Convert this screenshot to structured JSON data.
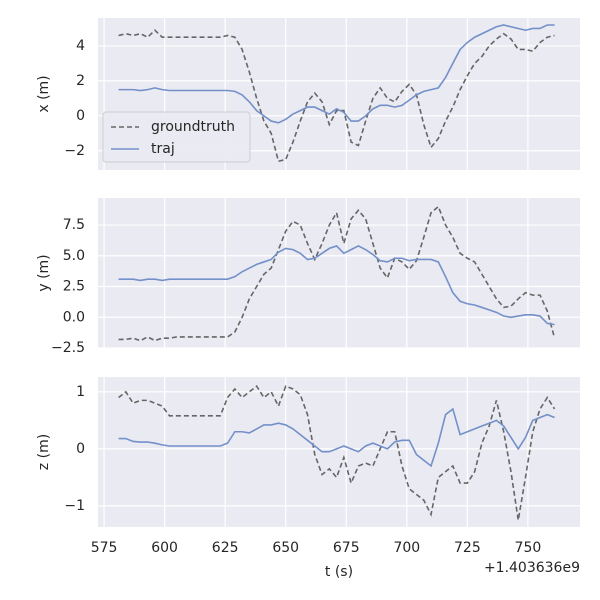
{
  "chart_data": [
    {
      "type": "line",
      "ylabel": "x (m)",
      "legend": "center left",
      "x": [
        581,
        584,
        587,
        590,
        593,
        596,
        599,
        602,
        605,
        608,
        611,
        614,
        617,
        620,
        623,
        626,
        629,
        632,
        635,
        638,
        641,
        644,
        647,
        650,
        653,
        656,
        659,
        662,
        665,
        668,
        671,
        674,
        677,
        680,
        683,
        686,
        689,
        692,
        695,
        698,
        701,
        704,
        707,
        710,
        713,
        716,
        719,
        722,
        725,
        728,
        731,
        734,
        737,
        740,
        743,
        746,
        749,
        752,
        755,
        758,
        761
      ],
      "xlim": [
        572.5,
        771.5
      ],
      "ylim": [
        -3.1,
        5.6
      ],
      "yticks": [
        {
          "value": -2,
          "label": "−2"
        },
        0,
        2,
        4
      ],
      "series": [
        {
          "name": "groundtruth",
          "color": "#666666",
          "dash": true,
          "values": [
            4.6,
            4.7,
            4.6,
            4.7,
            4.5,
            4.9,
            4.5,
            4.5,
            4.5,
            4.5,
            4.5,
            4.5,
            4.5,
            4.5,
            4.5,
            4.6,
            4.5,
            3.8,
            2.5,
            1.0,
            -0.3,
            -1.0,
            -2.6,
            -2.5,
            -1.5,
            -0.3,
            0.8,
            1.3,
            0.8,
            -0.5,
            0.3,
            0.3,
            -1.5,
            -1.7,
            -0.3,
            1.0,
            1.6,
            1.0,
            0.8,
            1.4,
            1.8,
            1.2,
            -0.5,
            -1.8,
            -1.3,
            -0.3,
            0.5,
            1.5,
            2.3,
            3.0,
            3.4,
            4.0,
            4.4,
            4.7,
            4.4,
            3.8,
            3.8,
            3.7,
            4.2,
            4.5,
            4.6
          ]
        },
        {
          "name": "traj",
          "color": "#7390c9",
          "dash": false,
          "values": [
            1.5,
            1.5,
            1.5,
            1.45,
            1.5,
            1.6,
            1.5,
            1.45,
            1.45,
            1.45,
            1.45,
            1.45,
            1.45,
            1.45,
            1.45,
            1.45,
            1.4,
            1.2,
            0.8,
            0.3,
            0.0,
            -0.3,
            -0.4,
            -0.2,
            0.1,
            0.3,
            0.5,
            0.5,
            0.3,
            0.1,
            0.4,
            0.2,
            -0.3,
            -0.3,
            0.0,
            0.4,
            0.6,
            0.6,
            0.5,
            0.6,
            0.9,
            1.2,
            1.4,
            1.5,
            1.6,
            2.2,
            3.0,
            3.8,
            4.2,
            4.5,
            4.7,
            4.9,
            5.1,
            5.2,
            5.1,
            5.0,
            4.9,
            5.0,
            5.0,
            5.2,
            5.2
          ]
        }
      ]
    },
    {
      "type": "line",
      "ylabel": "y (m)",
      "x": [
        581,
        584,
        587,
        590,
        593,
        596,
        599,
        602,
        605,
        608,
        611,
        614,
        617,
        620,
        623,
        626,
        629,
        632,
        635,
        638,
        641,
        644,
        647,
        650,
        653,
        656,
        659,
        662,
        665,
        668,
        671,
        674,
        677,
        680,
        683,
        686,
        689,
        692,
        695,
        698,
        701,
        704,
        707,
        710,
        713,
        716,
        719,
        722,
        725,
        728,
        731,
        734,
        737,
        740,
        743,
        746,
        749,
        752,
        755,
        758,
        761
      ],
      "xlim": [
        572.5,
        771.5
      ],
      "ylim": [
        -2.5,
        9.7
      ],
      "yticks": [
        {
          "value": -2.5,
          "label": "−2.5"
        },
        {
          "value": 0,
          "label": "0.0"
        },
        2.5,
        {
          "value": 5,
          "label": "5.0"
        },
        7.5
      ],
      "series": [
        {
          "name": "groundtruth",
          "color": "#666666",
          "dash": true,
          "values": [
            -1.8,
            -1.8,
            -1.7,
            -1.9,
            -1.6,
            -1.9,
            -1.7,
            -1.7,
            -1.6,
            -1.6,
            -1.6,
            -1.6,
            -1.6,
            -1.6,
            -1.6,
            -1.6,
            -1.2,
            0.0,
            1.5,
            2.5,
            3.5,
            4.0,
            5.5,
            7.0,
            7.8,
            7.5,
            6.0,
            4.7,
            6.0,
            7.5,
            8.5,
            6.0,
            8.0,
            8.7,
            8.0,
            6.0,
            4.0,
            3.2,
            4.8,
            4.5,
            3.9,
            4.6,
            6.5,
            8.5,
            9.0,
            7.5,
            6.5,
            5.2,
            4.8,
            4.5,
            3.5,
            2.5,
            1.5,
            0.8,
            0.9,
            1.5,
            2.0,
            1.8,
            1.8,
            0.5,
            -1.7
          ]
        },
        {
          "name": "traj",
          "color": "#7390c9",
          "dash": false,
          "values": [
            3.1,
            3.1,
            3.1,
            3.0,
            3.1,
            3.1,
            3.0,
            3.1,
            3.1,
            3.1,
            3.1,
            3.1,
            3.1,
            3.1,
            3.1,
            3.1,
            3.3,
            3.7,
            4.0,
            4.3,
            4.5,
            4.7,
            5.3,
            5.6,
            5.5,
            5.2,
            4.7,
            4.8,
            5.2,
            5.6,
            5.8,
            5.2,
            5.5,
            5.8,
            5.5,
            5.1,
            4.6,
            4.5,
            4.8,
            4.8,
            4.6,
            4.7,
            4.7,
            4.7,
            4.5,
            3.3,
            2.0,
            1.3,
            1.1,
            1.0,
            0.8,
            0.6,
            0.4,
            0.1,
            0.0,
            0.1,
            0.2,
            0.2,
            0.1,
            -0.5,
            -0.6
          ]
        }
      ]
    },
    {
      "type": "line",
      "ylabel": "z (m)",
      "xlabel": "t (s)",
      "offset": "+1.403636e9",
      "x": [
        581,
        584,
        587,
        590,
        593,
        596,
        599,
        602,
        605,
        608,
        611,
        614,
        617,
        620,
        623,
        626,
        629,
        632,
        635,
        638,
        641,
        644,
        647,
        650,
        653,
        656,
        659,
        662,
        665,
        668,
        671,
        674,
        677,
        680,
        683,
        686,
        689,
        692,
        695,
        698,
        701,
        704,
        707,
        710,
        713,
        716,
        719,
        722,
        725,
        728,
        731,
        734,
        737,
        740,
        743,
        746,
        749,
        752,
        755,
        758,
        761
      ],
      "xlim": [
        572.5,
        771.5
      ],
      "xticks": [
        575,
        600,
        625,
        650,
        675,
        700,
        725,
        750
      ],
      "ylim": [
        -1.37,
        1.26
      ],
      "yticks": [
        {
          "value": -1,
          "label": "−1"
        },
        0,
        1
      ],
      "series": [
        {
          "name": "groundtruth",
          "color": "#666666",
          "dash": true,
          "values": [
            0.9,
            1.0,
            0.8,
            0.85,
            0.85,
            0.8,
            0.75,
            0.58,
            0.58,
            0.58,
            0.58,
            0.58,
            0.58,
            0.58,
            0.58,
            0.9,
            1.05,
            0.9,
            1.0,
            1.1,
            0.9,
            1.0,
            0.75,
            1.1,
            1.05,
            0.95,
            0.6,
            -0.1,
            -0.45,
            -0.35,
            -0.5,
            -0.15,
            -0.6,
            -0.3,
            -0.25,
            -0.3,
            0.0,
            0.3,
            0.3,
            -0.3,
            -0.7,
            -0.8,
            -0.9,
            -1.15,
            -0.5,
            -0.4,
            -0.3,
            -0.6,
            -0.6,
            -0.4,
            0.1,
            0.4,
            0.85,
            0.3,
            -0.4,
            -1.25,
            -0.5,
            0.3,
            0.7,
            0.9,
            0.7
          ]
        },
        {
          "name": "traj",
          "color": "#7390c9",
          "dash": false,
          "values": [
            0.18,
            0.18,
            0.13,
            0.12,
            0.12,
            0.1,
            0.07,
            0.05,
            0.05,
            0.05,
            0.05,
            0.05,
            0.05,
            0.05,
            0.05,
            0.1,
            0.3,
            0.3,
            0.28,
            0.35,
            0.42,
            0.42,
            0.45,
            0.42,
            0.35,
            0.25,
            0.15,
            0.05,
            -0.05,
            -0.05,
            0.0,
            0.05,
            0.0,
            -0.05,
            0.05,
            0.1,
            0.05,
            0.0,
            0.12,
            0.15,
            0.15,
            -0.1,
            -0.2,
            -0.3,
            0.1,
            0.6,
            0.7,
            0.25,
            0.3,
            0.35,
            0.4,
            0.45,
            0.5,
            0.4,
            0.2,
            0.0,
            0.2,
            0.5,
            0.55,
            0.6,
            0.55
          ]
        }
      ]
    }
  ]
}
